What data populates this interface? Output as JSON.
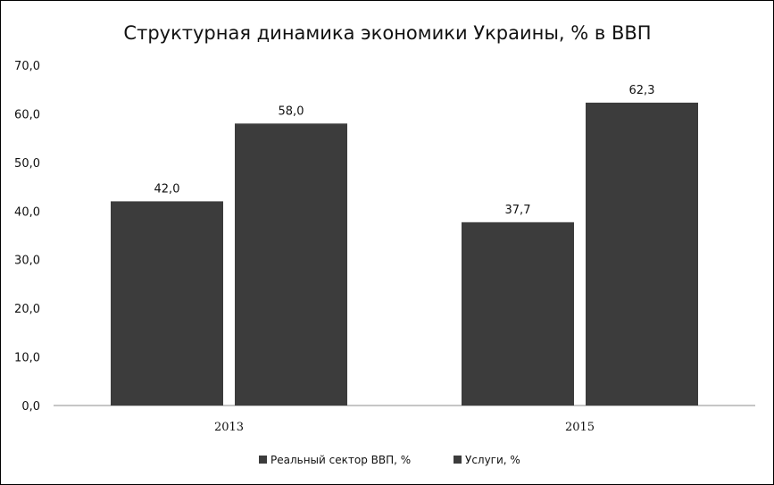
{
  "chart_data": {
    "type": "bar",
    "title": "Структурная динамика экономики Украины, % в ВВП",
    "categories": [
      "2013",
      "2015"
    ],
    "series": [
      {
        "name": "Реальный сектор ВВП, %",
        "values": [
          42.0,
          37.7
        ],
        "labels": [
          "42,0",
          "37,7"
        ]
      },
      {
        "name": "Услуги, %",
        "values": [
          58.0,
          62.3
        ],
        "labels": [
          "58,0",
          "62,3"
        ]
      }
    ],
    "ylim": [
      0,
      70
    ],
    "yticks": [
      0,
      10,
      20,
      30,
      40,
      50,
      60,
      70
    ],
    "ytick_labels": [
      "0,0",
      "10,0",
      "20,0",
      "30,0",
      "40,0",
      "50,0",
      "60,0",
      "70,0"
    ],
    "xlabel": "",
    "ylabel": "",
    "grid": false,
    "legend_position": "bottom",
    "bar_color": "#3c3c3c"
  }
}
